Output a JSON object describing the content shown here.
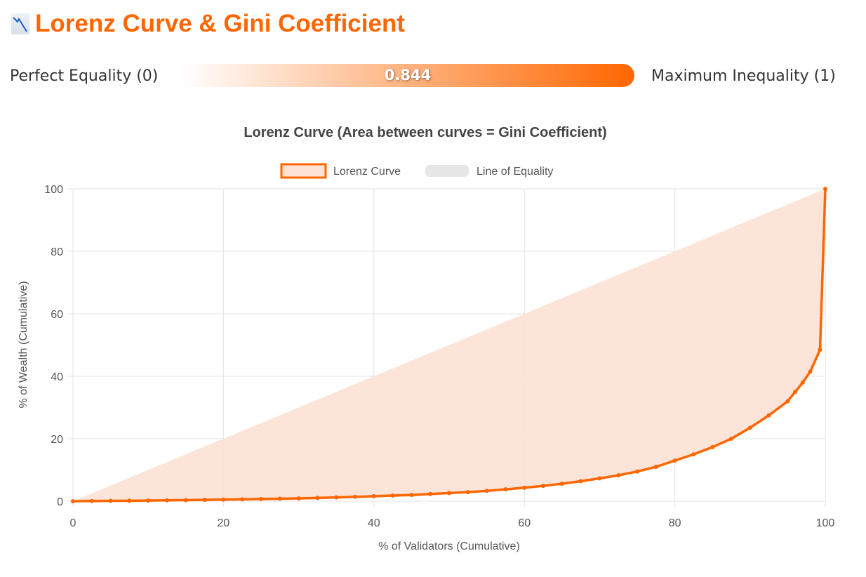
{
  "header": {
    "title": "Lorenz Curve & Gini Coefficient",
    "icon": "chart-decreasing-icon"
  },
  "gini": {
    "left_label": "Perfect Equality (0)",
    "right_label": "Maximum Inequality (1)",
    "value_label": "0.844",
    "value": 0.844,
    "gradient_from": "#ffffff",
    "gradient_to": "#ff6600"
  },
  "chart_data": {
    "type": "line",
    "title": "Lorenz Curve (Area between curves = Gini Coefficient)",
    "xlabel": "% of Validators (Cumulative)",
    "ylabel": "% of Wealth (Cumulative)",
    "xlim": [
      0,
      100
    ],
    "ylim": [
      0,
      100
    ],
    "xticks": [
      "0",
      "20",
      "40",
      "60",
      "80",
      "100"
    ],
    "yticks": [
      "0",
      "20",
      "40",
      "60",
      "80",
      "100"
    ],
    "grid": true,
    "legend": "top",
    "series": [
      {
        "name": "Lorenz Curve",
        "color": "#ff6600",
        "fill": "#fde1d4",
        "x": [
          0,
          2.5,
          5,
          7.5,
          10,
          12.5,
          15,
          17.5,
          20,
          22.5,
          25,
          27.5,
          30,
          32.5,
          35,
          37.5,
          40,
          42.5,
          45,
          47.5,
          50,
          52.5,
          55,
          57.5,
          60,
          62.5,
          65,
          67.5,
          70,
          72.5,
          75,
          77.5,
          80,
          82.5,
          85,
          87.5,
          90,
          92.5,
          95,
          96,
          97,
          98,
          99.3,
          100
        ],
        "y": [
          0,
          0.05,
          0.1,
          0.15,
          0.2,
          0.28,
          0.35,
          0.43,
          0.5,
          0.6,
          0.7,
          0.8,
          0.9,
          1.05,
          1.2,
          1.4,
          1.6,
          1.8,
          2.0,
          2.3,
          2.6,
          2.9,
          3.3,
          3.8,
          4.3,
          4.9,
          5.6,
          6.4,
          7.3,
          8.3,
          9.5,
          11.0,
          13.0,
          15.0,
          17.3,
          20.0,
          23.5,
          27.5,
          32,
          35,
          38,
          41.5,
          48.5,
          100
        ]
      },
      {
        "name": "Line of Equality",
        "color": "#e6e6e6",
        "x": [
          0,
          100
        ],
        "y": [
          0,
          100
        ]
      }
    ]
  }
}
